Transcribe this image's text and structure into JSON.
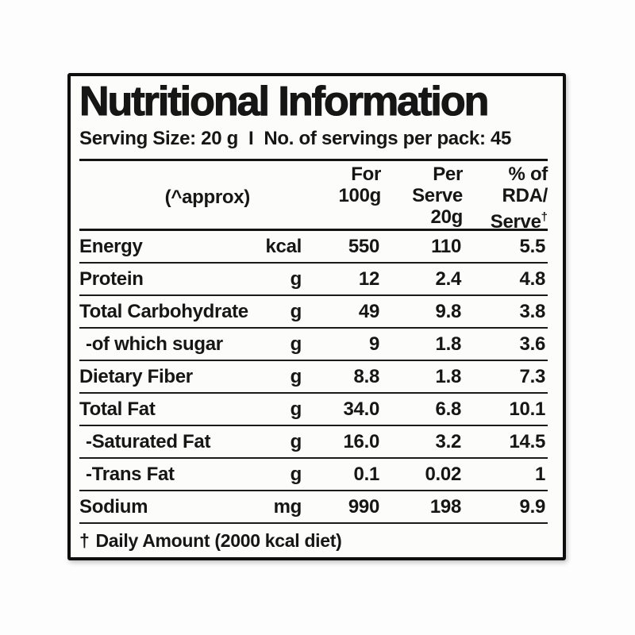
{
  "label": {
    "title": "Nutritional Information",
    "serving": {
      "size": "Serving Size: 20 g",
      "separator": "I",
      "per_pack": "No. of servings per pack: 45"
    },
    "table": {
      "header": {
        "approx": "(^approx)",
        "for_col": {
          "l1": "For",
          "l2": "100g"
        },
        "serve_col": {
          "l1": "Per",
          "l2": "Serve",
          "l3": "20g"
        },
        "rda_col": {
          "l1": "% of",
          "l2": "RDA/",
          "l3": "Serve",
          "dagger": "†"
        }
      },
      "rows": [
        {
          "name": "Energy",
          "unit": "kcal",
          "per100": "550",
          "serve": "110",
          "rda": "5.5"
        },
        {
          "name": "Protein",
          "unit": "g",
          "per100": "12",
          "serve": "2.4",
          "rda": "4.8"
        },
        {
          "name": "Total Carbohydrate",
          "unit": "g",
          "per100": "49",
          "serve": "9.8",
          "rda": "3.8"
        },
        {
          "name": "-of which sugar",
          "unit": "g",
          "per100": "9",
          "serve": "1.8",
          "rda": "3.6"
        },
        {
          "name": "Dietary Fiber",
          "unit": "g",
          "per100": "8.8",
          "serve": "1.8",
          "rda": "7.3"
        },
        {
          "name": "Total Fat",
          "unit": "g",
          "per100": "34.0",
          "serve": "6.8",
          "rda": "10.1"
        },
        {
          "name": "-Saturated Fat",
          "unit": "g",
          "per100": "16.0",
          "serve": "3.2",
          "rda": "14.5"
        },
        {
          "name": "-Trans Fat",
          "unit": "g",
          "per100": "0.1",
          "serve": "0.02",
          "rda": "1"
        },
        {
          "name": "Sodium",
          "unit": "mg",
          "per100": "990",
          "serve": "198",
          "rda": "9.9"
        }
      ],
      "footnote": {
        "dagger": "†",
        "text": "Daily Amount (2000 kcal diet)"
      }
    },
    "colors": {
      "text": "#161616",
      "border": "#0e0e0e",
      "background": "#fcfcfa"
    }
  }
}
